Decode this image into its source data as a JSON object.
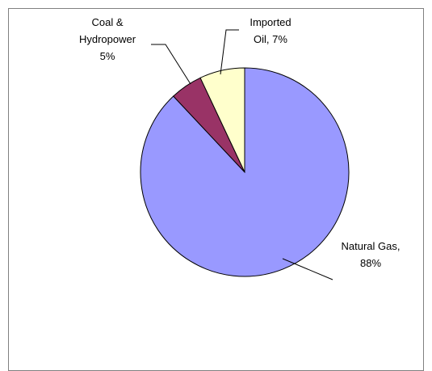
{
  "chart_data": {
    "type": "pie",
    "categories": [
      "Natural Gas,",
      "Coal & Hydropower",
      "Imported Oil,"
    ],
    "values": [
      88,
      5,
      7
    ],
    "value_labels": [
      "88%",
      "5%",
      "7%"
    ],
    "colors": [
      "#9999ff",
      "#993366",
      "#ffffcc"
    ]
  }
}
